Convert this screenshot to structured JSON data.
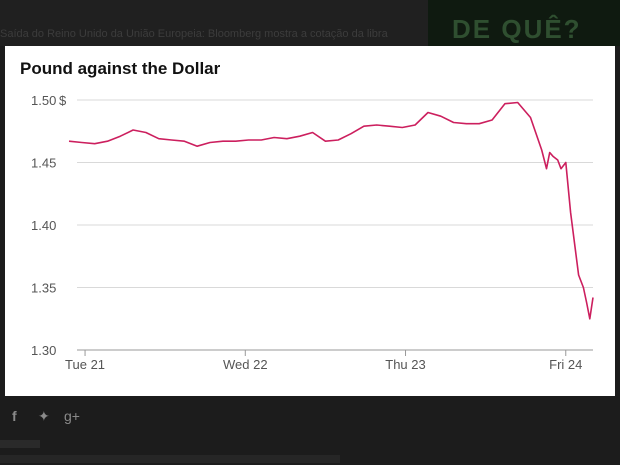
{
  "background": {
    "caption": "Saída do Reino Unido da União Europeia: Bloomberg mostra a cotação da libra",
    "thumb_text": "DE QUÊ?",
    "social_icons": [
      "facebook-icon",
      "twitter-icon",
      "google-plus-icon"
    ]
  },
  "chart_data": {
    "type": "line",
    "title": "Pound against the Dollar",
    "y_unit": "$",
    "ylim": [
      1.3,
      1.5
    ],
    "y_ticks": [
      1.5,
      1.45,
      1.4,
      1.35,
      1.3
    ],
    "y_tick_labels": [
      "1.50",
      "1.45",
      "1.40",
      "1.35",
      "1.30"
    ],
    "xlim": [
      -0.2,
      3.17
    ],
    "x_ticks": [
      0,
      1,
      2,
      3
    ],
    "x_tick_labels": [
      "Tue 21",
      "Wed 22",
      "Thu 23",
      "Fri 24"
    ],
    "grid": true,
    "line_color": "#cc1f5e",
    "series": [
      {
        "x": [
          -0.1,
          -0.02,
          0.06,
          0.14,
          0.22,
          0.3,
          0.38,
          0.46,
          0.54,
          0.62,
          0.7,
          0.78,
          0.86,
          0.94,
          1.02,
          1.1,
          1.18,
          1.26,
          1.34,
          1.42,
          1.5,
          1.58,
          1.66,
          1.74,
          1.82,
          1.9,
          1.98,
          2.06,
          2.14,
          2.22,
          2.3,
          2.38,
          2.46,
          2.54,
          2.62,
          2.7,
          2.78,
          2.85,
          2.88,
          2.9,
          2.92,
          2.95,
          2.97,
          3.0,
          3.03,
          3.06,
          3.08,
          3.11,
          3.13,
          3.15,
          3.17
        ],
        "y": [
          1.467,
          1.466,
          1.465,
          1.467,
          1.471,
          1.476,
          1.474,
          1.469,
          1.468,
          1.467,
          1.463,
          1.466,
          1.467,
          1.467,
          1.468,
          1.468,
          1.47,
          1.469,
          1.471,
          1.474,
          1.467,
          1.468,
          1.473,
          1.479,
          1.48,
          1.479,
          1.478,
          1.48,
          1.49,
          1.487,
          1.482,
          1.481,
          1.481,
          1.484,
          1.497,
          1.498,
          1.486,
          1.46,
          1.445,
          1.458,
          1.455,
          1.452,
          1.445,
          1.45,
          1.41,
          1.38,
          1.36,
          1.35,
          1.338,
          1.325,
          1.342
        ]
      }
    ]
  }
}
